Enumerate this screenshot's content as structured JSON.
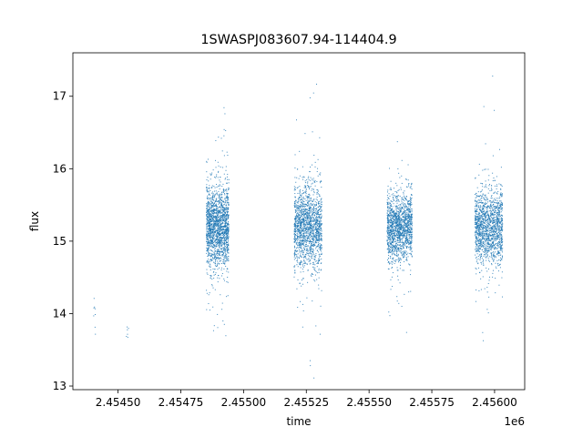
{
  "chart_data": {
    "type": "scatter",
    "title": "1SWASPJ083607.94-114404.9",
    "xlabel": "time",
    "ylabel": "flux",
    "x_offset_label": "1e6",
    "xlim": [
      2.45432,
      2.45612
    ],
    "ylim": [
      12.95,
      17.6
    ],
    "x_ticks": [
      2.4545,
      2.45475,
      2.455,
      2.45525,
      2.4555,
      2.45575,
      2.456
    ],
    "x_tick_labels": [
      "2.45450",
      "2.45475",
      "2.45500",
      "2.45525",
      "2.45550",
      "2.45575",
      "2.45600"
    ],
    "y_ticks": [
      13,
      14,
      15,
      16,
      17
    ],
    "y_tick_labels": [
      "13",
      "14",
      "15",
      "16",
      "17"
    ],
    "grid": false,
    "marker_color": "#1f77b4",
    "clusters": [
      {
        "x_range": [
          2.4544,
          2.45441
        ],
        "center": 14.0,
        "spread": 0.35,
        "count": 8
      },
      {
        "x_range": [
          2.45453,
          2.45454
        ],
        "center": 13.8,
        "spread": 0.2,
        "count": 6
      },
      {
        "x_range": [
          2.45485,
          2.45494
        ],
        "center": 15.2,
        "spread": 0.55,
        "count": 1800
      },
      {
        "x_range": [
          2.4552,
          2.45531
        ],
        "center": 15.2,
        "spread": 0.55,
        "count": 1600
      },
      {
        "x_range": [
          2.45557,
          2.45567
        ],
        "center": 15.2,
        "spread": 0.45,
        "count": 1500
      },
      {
        "x_range": [
          2.45592,
          2.45603
        ],
        "center": 15.2,
        "spread": 0.5,
        "count": 1500
      }
    ]
  }
}
